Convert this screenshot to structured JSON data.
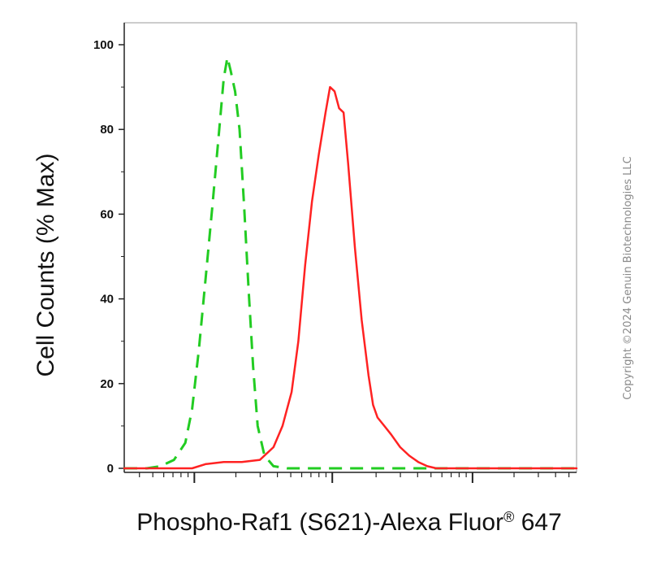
{
  "chart_data": {
    "type": "line",
    "title": "",
    "xlabel": "Phospho-Raf1 (S621)-Alexa Fluor",
    "xlabel_mark": "®",
    "xlabel_suffix": " 647",
    "ylabel": "Cell Counts (% Max)",
    "yticks": [
      "0",
      "20",
      "40",
      "60",
      "80",
      "100"
    ],
    "ylim": [
      0,
      100
    ],
    "xlim": [
      0,
      100
    ],
    "x_scale": "log (unlabeled)",
    "grid": false,
    "series": [
      {
        "style": "dashed",
        "color": "#22cc22",
        "x": [
          0,
          5,
          8,
          11,
          13.5,
          15,
          16.5,
          18,
          19.5,
          21,
          22,
          22.8,
          23.5,
          24.5,
          25.5,
          26.5,
          27.5,
          28.5,
          29.5,
          31,
          33,
          36,
          50,
          70,
          100
        ],
        "y": [
          0,
          0,
          0.5,
          2,
          6,
          14,
          28,
          45,
          62,
          80,
          92,
          97,
          94,
          89,
          80,
          62,
          42,
          24,
          10,
          3,
          0.5,
          0,
          0,
          0,
          0
        ]
      },
      {
        "style": "solid",
        "color": "#ff2222",
        "x": [
          0,
          10,
          15,
          18,
          22,
          26,
          30,
          33,
          35,
          37,
          38.5,
          40,
          41.5,
          43,
          44.5,
          45.5,
          46.5,
          47.5,
          48.5,
          49.5,
          51,
          52.5,
          54,
          55,
          56,
          57.5,
          59,
          61,
          63,
          65,
          67,
          69,
          72,
          80,
          90,
          100
        ],
        "y": [
          0,
          0,
          0,
          1,
          1.5,
          1.5,
          2,
          5,
          10,
          18,
          30,
          48,
          63,
          74,
          84,
          90,
          89,
          85,
          84,
          72,
          52,
          35,
          22,
          15,
          12,
          10,
          8,
          5,
          3,
          1.5,
          0.5,
          0,
          0,
          0,
          0,
          0
        ]
      }
    ]
  },
  "copyright": "Copyright ©2024 Genuin Biotechnologies LLC"
}
